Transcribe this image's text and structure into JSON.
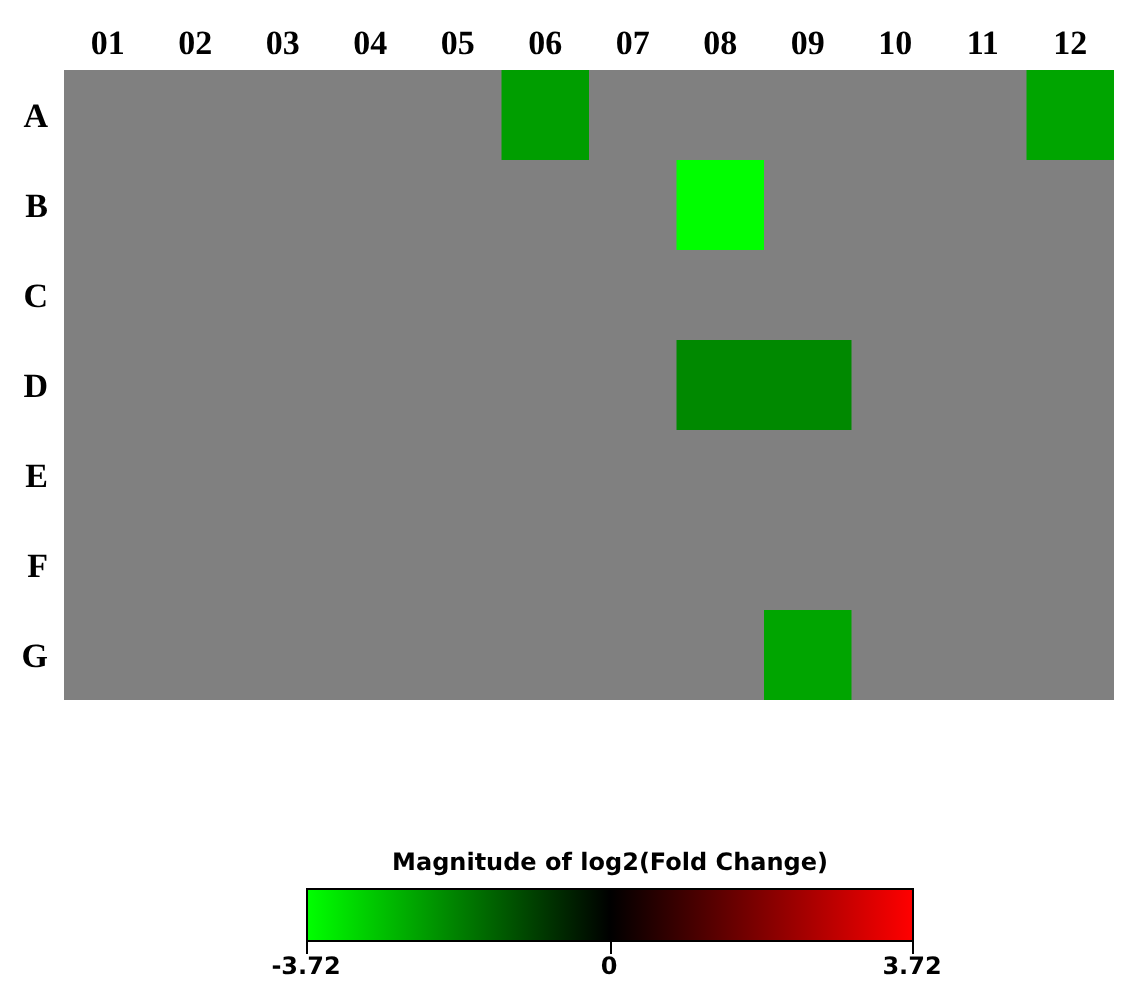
{
  "chart_data": {
    "type": "heatmap",
    "clabel": "Magnitude of log2(Fold Change)",
    "categories": [
      "01",
      "02",
      "03",
      "04",
      "05",
      "06",
      "07",
      "08",
      "09",
      "10",
      "11",
      "12"
    ],
    "y_categories": [
      "A",
      "B",
      "C",
      "D",
      "E",
      "F",
      "G"
    ],
    "cells": [
      [
        null,
        null,
        null,
        null,
        null,
        -2.3,
        null,
        null,
        null,
        null,
        null,
        -2.4
      ],
      [
        null,
        null,
        null,
        null,
        null,
        null,
        null,
        -3.7,
        null,
        null,
        null,
        null
      ],
      [
        null,
        null,
        null,
        null,
        null,
        null,
        null,
        null,
        null,
        null,
        null,
        null
      ],
      [
        null,
        null,
        null,
        null,
        null,
        null,
        null,
        -2.0,
        -2.0,
        null,
        null,
        null
      ],
      [
        null,
        null,
        null,
        null,
        null,
        null,
        null,
        null,
        null,
        null,
        null,
        null
      ],
      [
        null,
        null,
        null,
        null,
        null,
        null,
        null,
        null,
        null,
        null,
        null,
        null
      ],
      [
        null,
        null,
        null,
        null,
        null,
        null,
        null,
        null,
        -2.4,
        null,
        null,
        null
      ]
    ],
    "clim": [
      -3.72,
      3.72
    ],
    "cticks": [
      {
        "value": -3.72,
        "label": "-3.72"
      },
      0,
      3.72
    ]
  }
}
